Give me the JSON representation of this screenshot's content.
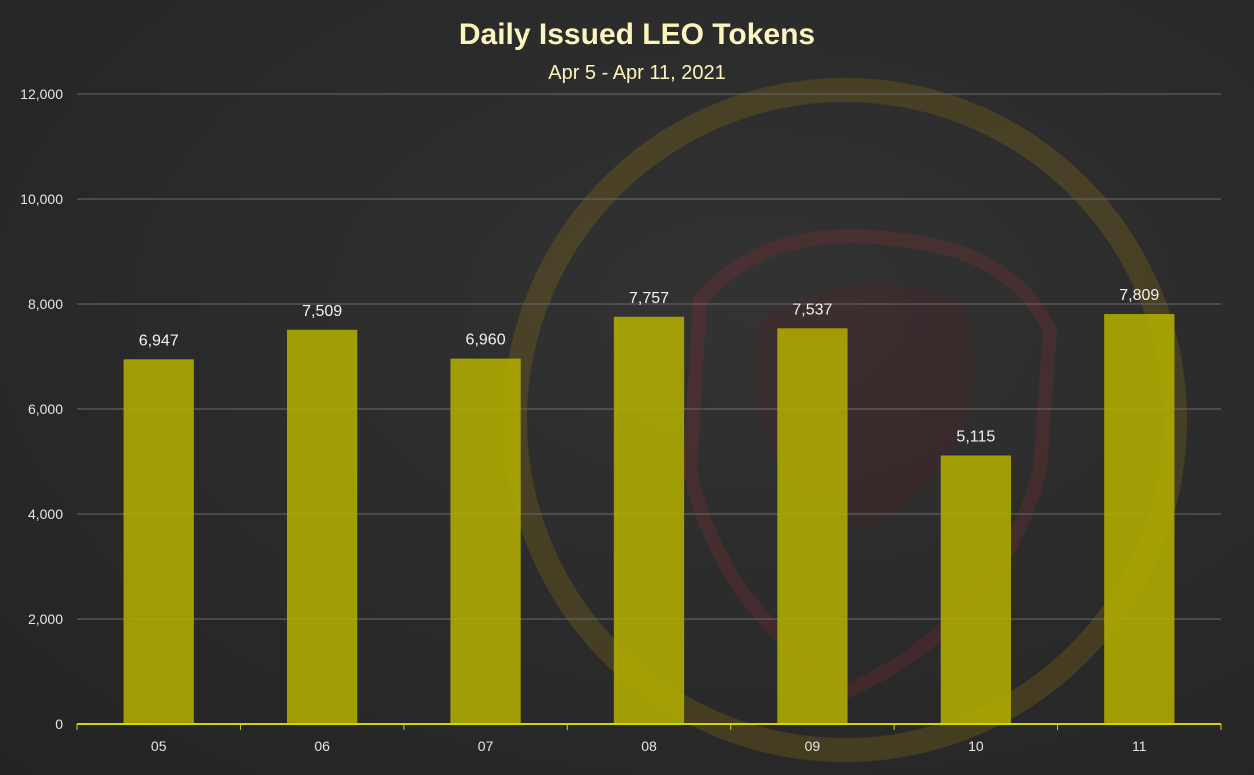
{
  "chart_data": {
    "type": "bar",
    "title": "Daily Issued LEO Tokens",
    "subtitle": "Apr 5 - Apr 11, 2021",
    "categories": [
      "05",
      "06",
      "07",
      "08",
      "09",
      "10",
      "11"
    ],
    "values": [
      6947,
      7509,
      6960,
      7757,
      7537,
      5115,
      7809
    ],
    "data_labels": [
      "6,947",
      "7,509",
      "6,960",
      "7,757",
      "7,537",
      "5,115",
      "7,809"
    ],
    "ylim": [
      0,
      12000
    ],
    "yticks": [
      0,
      2000,
      4000,
      6000,
      8000,
      10000,
      12000
    ],
    "ytick_labels": [
      "0",
      "2,000",
      "4,000",
      "6,000",
      "8,000",
      "10,000",
      "12,000"
    ],
    "xlabel": "",
    "ylabel": "",
    "grid": true,
    "legend": "none",
    "colors": {
      "bar": "#b1ad00",
      "axis": "#d8d400",
      "title": "#fdf5c0",
      "background": "#2b2b2b"
    }
  }
}
